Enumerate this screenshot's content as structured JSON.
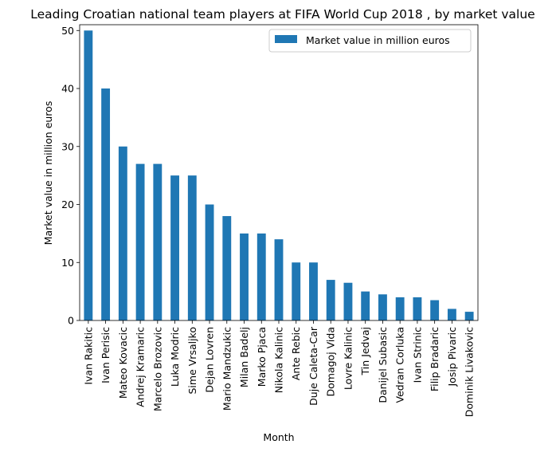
{
  "chart_data": {
    "type": "bar",
    "title": "Leading Croatian national team players at FIFA World Cup 2018 , by market value",
    "xlabel": "Month",
    "ylabel": "Market value in million euros",
    "ylim": [
      0,
      51
    ],
    "yticks": [
      0,
      10,
      20,
      30,
      40,
      50
    ],
    "grid": false,
    "legend_position": "top-right",
    "categories": [
      "Ivan Rakitic",
      "Ivan Perisic",
      "Mateo Kovacic",
      "Andrej Kramaric",
      "Marcelo Brozovic",
      "Luka Modric",
      "Sime Vrsaljko",
      "Dejan Lovren",
      "Mario Mandzukic",
      "Milan Badelj",
      "Marko Pjaca",
      "Nikola Kalinic",
      "Ante Rebic",
      "Duje Caleta-Car",
      "Domagoj Vida",
      "Lovre Kalinic",
      "Tin Jedvaj",
      "Danijel Subasic",
      "Vedran Corluka",
      "Ivan Strinic",
      "Filip Bradaric",
      "Josip Pivaric",
      "Dominik Livakovic"
    ],
    "series": [
      {
        "name": "Market value in million euros",
        "color": "#1f77b4",
        "values": [
          50,
          40,
          30,
          27,
          27,
          25,
          25,
          20,
          18,
          15,
          15,
          14,
          10,
          10,
          7,
          6.5,
          5,
          4.5,
          4,
          4,
          3.5,
          2,
          1.5
        ]
      }
    ]
  }
}
